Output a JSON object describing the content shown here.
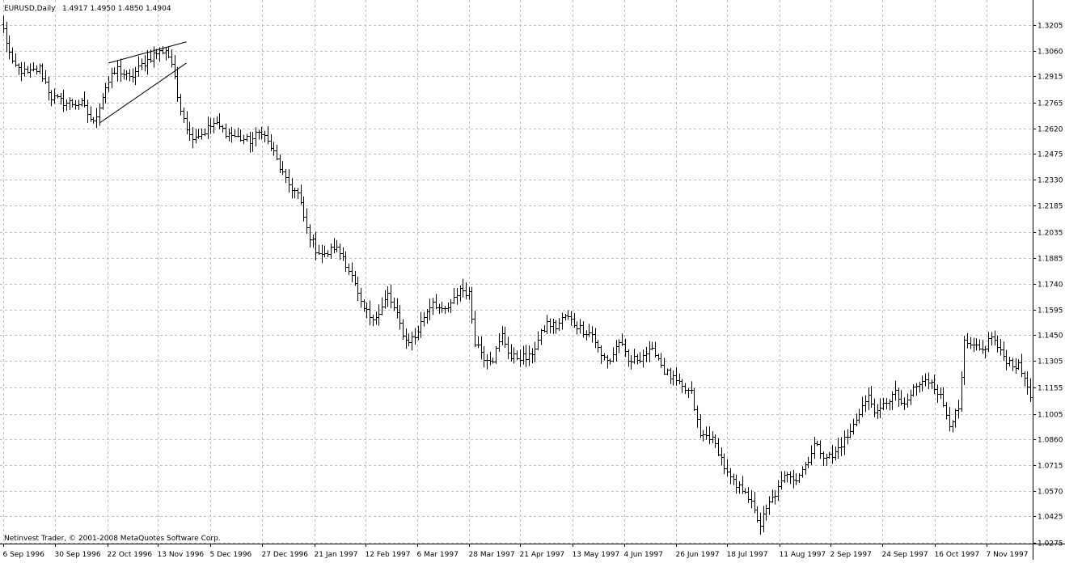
{
  "header": {
    "symbol": "EURUSD,Daily",
    "ohlc": "1.4917 1.4950 1.4850 1.4904"
  },
  "footer": {
    "copyright": "Netinvest Trader, © 2001-2008 MetaQuotes Software Corp."
  },
  "colors": {
    "background": "#ffffff",
    "bars": "#000000",
    "grid": "#c0c0c0",
    "axis": "#000000",
    "trendlines": "#000000"
  },
  "chart_data": {
    "type": "bar",
    "subtype": "ohlc",
    "grid": true,
    "ylim": [
      1.0255,
      1.3255
    ],
    "y_ticks": [
      "1.3205",
      "1.3060",
      "1.2915",
      "1.2765",
      "1.2620",
      "1.2475",
      "1.2330",
      "1.2185",
      "1.2035",
      "1.1885",
      "1.1740",
      "1.1595",
      "1.1450",
      "1.1305",
      "1.1155",
      "1.1005",
      "1.0860",
      "1.0715",
      "1.0570",
      "1.0425",
      "1.0275"
    ],
    "x_ticks": [
      "6 Sep 1996",
      "30 Sep 1996",
      "22 Oct 1996",
      "13 Nov 1996",
      "5 Dec 1996",
      "27 Dec 1996",
      "21 Jan 1997",
      "12 Feb 1997",
      "6 Mar 1997",
      "28 Mar 1997",
      "21 Apr 1997",
      "13 May 1997",
      "4 Jun 1997",
      "26 Jun 1997",
      "18 Jul 1997",
      "11 Aug 1997",
      "2 Sep 1997",
      "24 Sep 1997",
      "16 Oct 1997",
      "7 Nov 1997"
    ],
    "anchors": [
      {
        "i": 0,
        "c": 1.318
      },
      {
        "i": 3,
        "c": 1.298
      },
      {
        "i": 8,
        "c": 1.293
      },
      {
        "i": 12,
        "c": 1.296
      },
      {
        "i": 16,
        "c": 1.28
      },
      {
        "i": 20,
        "c": 1.277
      },
      {
        "i": 26,
        "c": 1.276
      },
      {
        "i": 30,
        "c": 1.265
      },
      {
        "i": 34,
        "c": 1.286
      },
      {
        "i": 38,
        "c": 1.296
      },
      {
        "i": 42,
        "c": 1.29
      },
      {
        "i": 46,
        "c": 1.298
      },
      {
        "i": 50,
        "c": 1.304
      },
      {
        "i": 54,
        "c": 1.307
      },
      {
        "i": 56,
        "c": 1.299
      },
      {
        "i": 58,
        "c": 1.28
      },
      {
        "i": 62,
        "c": 1.258
      },
      {
        "i": 66,
        "c": 1.259
      },
      {
        "i": 70,
        "c": 1.265
      },
      {
        "i": 74,
        "c": 1.26
      },
      {
        "i": 78,
        "c": 1.257
      },
      {
        "i": 82,
        "c": 1.255
      },
      {
        "i": 86,
        "c": 1.261
      },
      {
        "i": 90,
        "c": 1.248
      },
      {
        "i": 94,
        "c": 1.232
      },
      {
        "i": 98,
        "c": 1.225
      },
      {
        "i": 101,
        "c": 1.205
      },
      {
        "i": 104,
        "c": 1.194
      },
      {
        "i": 107,
        "c": 1.19
      },
      {
        "i": 110,
        "c": 1.195
      },
      {
        "i": 113,
        "c": 1.19
      },
      {
        "i": 116,
        "c": 1.178
      },
      {
        "i": 119,
        "c": 1.162
      },
      {
        "i": 122,
        "c": 1.156
      },
      {
        "i": 125,
        "c": 1.157
      },
      {
        "i": 128,
        "c": 1.168
      },
      {
        "i": 131,
        "c": 1.156
      },
      {
        "i": 134,
        "c": 1.142
      },
      {
        "i": 137,
        "c": 1.144
      },
      {
        "i": 140,
        "c": 1.156
      },
      {
        "i": 143,
        "c": 1.165
      },
      {
        "i": 146,
        "c": 1.158
      },
      {
        "i": 149,
        "c": 1.162
      },
      {
        "i": 152,
        "c": 1.172
      },
      {
        "i": 155,
        "c": 1.168
      },
      {
        "i": 157,
        "c": 1.142
      },
      {
        "i": 160,
        "c": 1.133
      },
      {
        "i": 163,
        "c": 1.132
      },
      {
        "i": 166,
        "c": 1.145
      },
      {
        "i": 169,
        "c": 1.132
      },
      {
        "i": 172,
        "c": 1.133
      },
      {
        "i": 175,
        "c": 1.132
      },
      {
        "i": 178,
        "c": 1.142
      },
      {
        "i": 181,
        "c": 1.152
      },
      {
        "i": 184,
        "c": 1.15
      },
      {
        "i": 187,
        "c": 1.156
      },
      {
        "i": 190,
        "c": 1.152
      },
      {
        "i": 193,
        "c": 1.148
      },
      {
        "i": 196,
        "c": 1.146
      },
      {
        "i": 199,
        "c": 1.133
      },
      {
        "i": 202,
        "c": 1.131
      },
      {
        "i": 205,
        "c": 1.142
      },
      {
        "i": 208,
        "c": 1.13
      },
      {
        "i": 211,
        "c": 1.132
      },
      {
        "i": 214,
        "c": 1.135
      },
      {
        "i": 217,
        "c": 1.136
      },
      {
        "i": 220,
        "c": 1.125
      },
      {
        "i": 223,
        "c": 1.12
      },
      {
        "i": 226,
        "c": 1.115
      },
      {
        "i": 229,
        "c": 1.112
      },
      {
        "i": 232,
        "c": 1.088
      },
      {
        "i": 235,
        "c": 1.088
      },
      {
        "i": 238,
        "c": 1.08
      },
      {
        "i": 241,
        "c": 1.066
      },
      {
        "i": 244,
        "c": 1.059
      },
      {
        "i": 247,
        "c": 1.058
      },
      {
        "i": 250,
        "c": 1.045
      },
      {
        "i": 252,
        "c": 1.038
      },
      {
        "i": 255,
        "c": 1.05
      },
      {
        "i": 258,
        "c": 1.058
      },
      {
        "i": 261,
        "c": 1.068
      },
      {
        "i": 264,
        "c": 1.064
      },
      {
        "i": 267,
        "c": 1.072
      },
      {
        "i": 270,
        "c": 1.083
      },
      {
        "i": 273,
        "c": 1.078
      },
      {
        "i": 276,
        "c": 1.076
      },
      {
        "i": 279,
        "c": 1.084
      },
      {
        "i": 282,
        "c": 1.09
      },
      {
        "i": 285,
        "c": 1.102
      },
      {
        "i": 288,
        "c": 1.11
      },
      {
        "i": 291,
        "c": 1.1
      },
      {
        "i": 294,
        "c": 1.108
      },
      {
        "i": 297,
        "c": 1.112
      },
      {
        "i": 300,
        "c": 1.104
      },
      {
        "i": 303,
        "c": 1.115
      },
      {
        "i": 306,
        "c": 1.118
      },
      {
        "i": 309,
        "c": 1.12
      },
      {
        "i": 312,
        "c": 1.11
      },
      {
        "i": 315,
        "c": 1.096
      },
      {
        "i": 318,
        "c": 1.102
      },
      {
        "i": 320,
        "c": 1.14
      },
      {
        "i": 323,
        "c": 1.138
      },
      {
        "i": 326,
        "c": 1.136
      },
      {
        "i": 329,
        "c": 1.145
      },
      {
        "i": 332,
        "c": 1.135
      },
      {
        "i": 335,
        "c": 1.13
      },
      {
        "i": 338,
        "c": 1.127
      },
      {
        "i": 341,
        "c": 1.118
      },
      {
        "i": 342,
        "c": 1.11
      }
    ],
    "trendlines": [
      {
        "i1": 35,
        "p1": 1.299,
        "i2": 61,
        "p2": 1.311
      },
      {
        "i1": 32,
        "p1": 1.265,
        "i2": 61,
        "p2": 1.299
      }
    ]
  }
}
